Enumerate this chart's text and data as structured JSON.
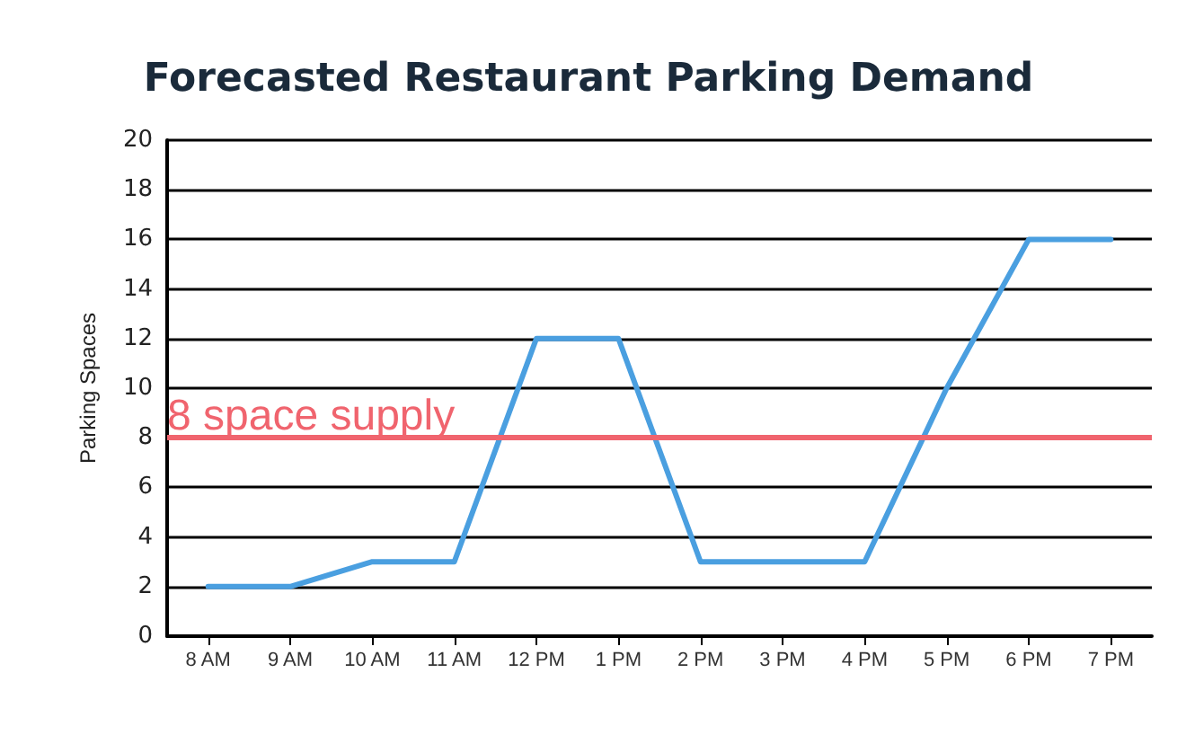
{
  "chart_data": {
    "type": "line",
    "title": "Forecasted Restaurant Parking Demand",
    "ylabel": "Parking Spaces",
    "categories": [
      "8 AM",
      "9 AM",
      "10 AM",
      "11 AM",
      "12 PM",
      "1 PM",
      "2 PM",
      "3 PM",
      "4 PM",
      "5 PM",
      "6 PM",
      "7 PM"
    ],
    "series": [
      {
        "color": "#4a9fe0",
        "values": [
          2,
          2,
          3,
          3,
          12,
          12,
          3,
          3,
          3,
          10,
          16,
          16
        ]
      }
    ],
    "ylim": [
      0,
      20
    ],
    "yticks": [
      0,
      2,
      4,
      6,
      8,
      10,
      12,
      14,
      16,
      18,
      20
    ],
    "grid": "y",
    "marker": "none",
    "line_style": "solid",
    "ref_lines": [
      {
        "axis": "y",
        "value": 8,
        "label": "8 space supply",
        "color": "#f0646e"
      }
    ]
  }
}
